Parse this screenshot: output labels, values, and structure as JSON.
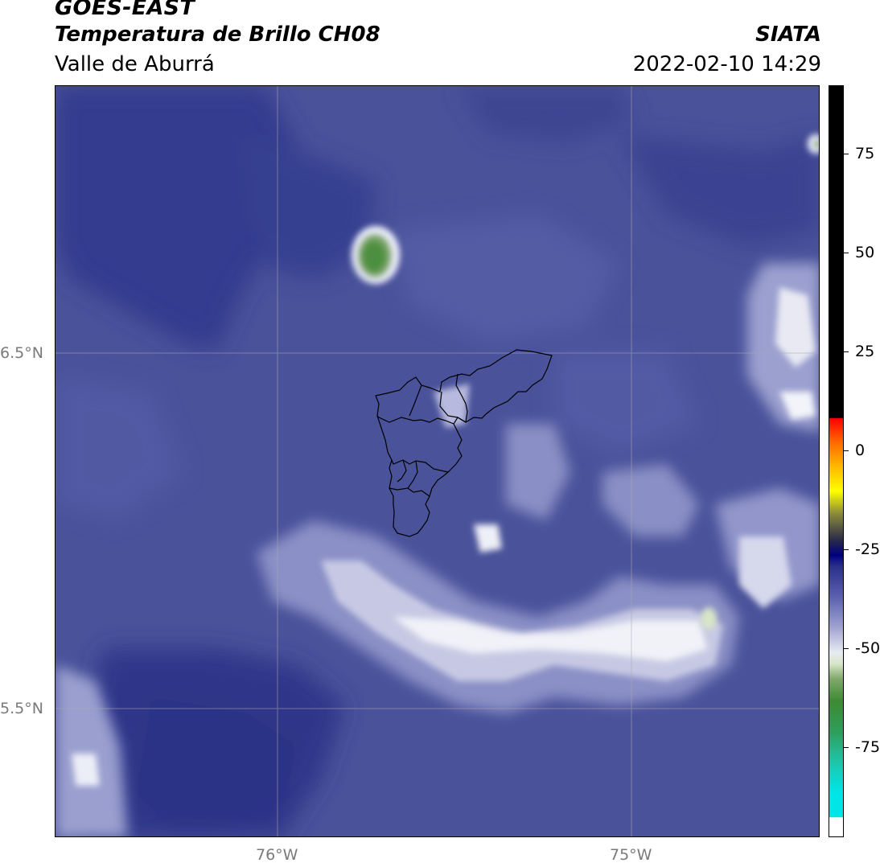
{
  "header": {
    "title": "GOES-EAST",
    "subtitle": "Temperatura de Brillo CH08",
    "region": "Valle de Aburrá",
    "organization": "SIATA",
    "timestamp": "2022-02-10 14:29"
  },
  "map": {
    "latitude_labels": [
      "6.5°N",
      "5.5°N"
    ],
    "longitude_labels": [
      "76°W",
      "75°W"
    ],
    "gridlines": true,
    "colors": {
      "background_blue": "#4a529a",
      "dark_blue": "#2f3a8c",
      "cloud_white": "#ffffff",
      "cloud_green": "#6aa25a",
      "boundary": "#000000"
    }
  },
  "colorbar": {
    "ticks": [
      "75",
      "50",
      "25",
      "0",
      "-25",
      "-50",
      "-75"
    ]
  }
}
